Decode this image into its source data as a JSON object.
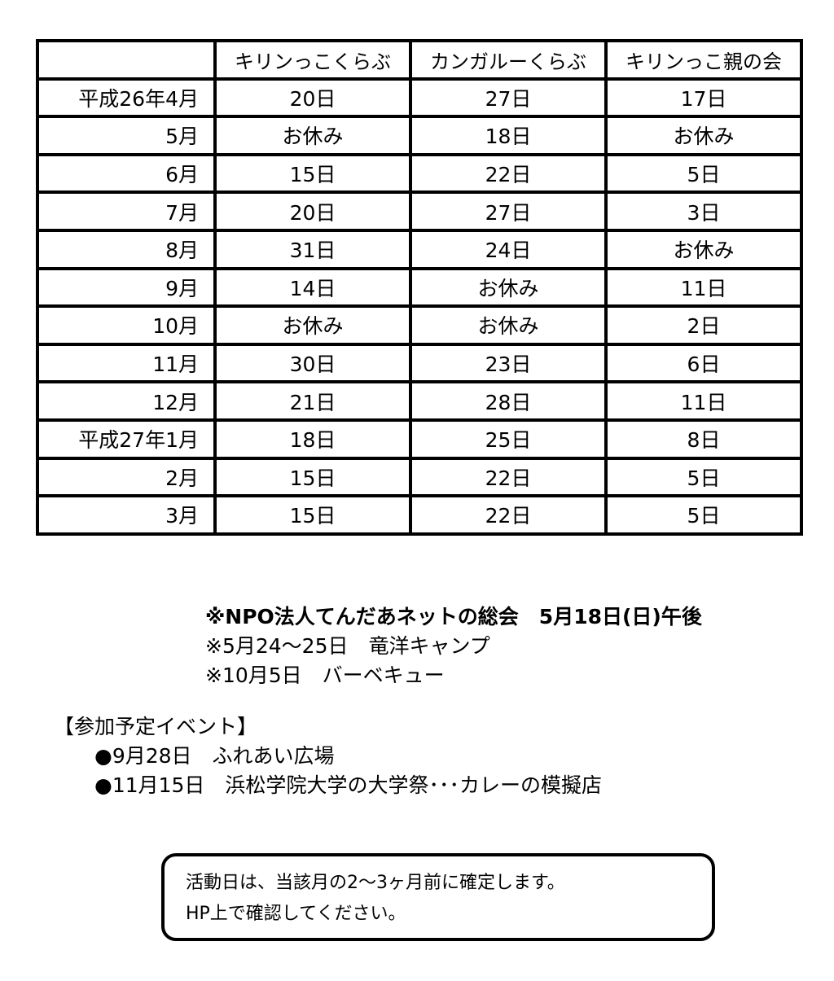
{
  "table": {
    "headers": [
      "",
      "キリンっこくらぶ",
      "カンガルーくらぶ",
      "キリンっこ親の会"
    ],
    "rows": [
      [
        "平成26年4月",
        "20日",
        "27日",
        "17日"
      ],
      [
        "5月",
        "お休み",
        "18日",
        "お休み"
      ],
      [
        "6月",
        "15日",
        "22日",
        "5日"
      ],
      [
        "7月",
        "20日",
        "27日",
        "3日"
      ],
      [
        "8月",
        "31日",
        "24日",
        "お休み"
      ],
      [
        "9月",
        "14日",
        "お休み",
        "11日"
      ],
      [
        "10月",
        "お休み",
        "お休み",
        "2日"
      ],
      [
        "11月",
        "30日",
        "23日",
        "6日"
      ],
      [
        "12月",
        "21日",
        "28日",
        "11日"
      ],
      [
        "平成27年1月",
        "18日",
        "25日",
        "8日"
      ],
      [
        "2月",
        "15日",
        "22日",
        "5日"
      ],
      [
        "3月",
        "15日",
        "22日",
        "5日"
      ]
    ]
  },
  "notes": [
    "※NPO法人てんだあネットの総会　5月18日(日)午後",
    "※5月24～25日　竜洋キャンプ",
    "※10月5日　バーベキュー"
  ],
  "events": {
    "title": "【参加予定イベント】",
    "items": [
      "●9月28日　ふれあい広場",
      "●11月15日　浜松学院大学の大学祭･･･カレーの模擬店"
    ]
  },
  "notice": [
    "活動日は、当該月の2～3ヶ月前に確定します。",
    "HP上で確認してください。"
  ]
}
